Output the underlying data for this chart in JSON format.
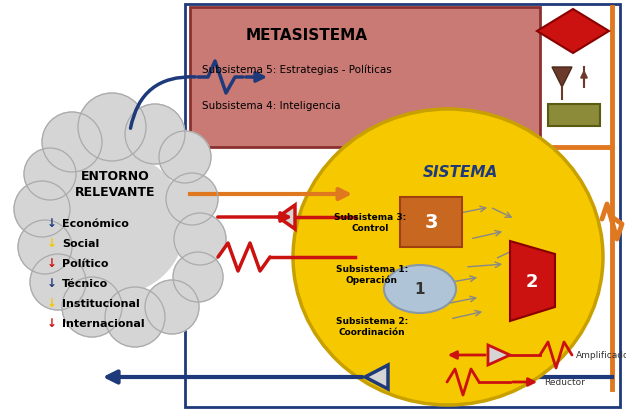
{
  "bg": "#ffffff",
  "blue": "#1f3a7a",
  "orange": "#e07820",
  "red": "#cc1111",
  "meta_fill": "#c97a75",
  "meta_edge": "#8b3030",
  "sistema_fill": "#f5c800",
  "sistema_edge": "#c8a000",
  "cloud_fill": "#d5d5d5",
  "cloud_edge": "#aaaaaa",
  "s3_fill": "#c86820",
  "s2_fill": "#cc1111",
  "s1_fill": "#b0c4d8",
  "olive_fill": "#8b8b3a",
  "brown_fill": "#6b3a2a",
  "meta_title": "METASISTEMA",
  "meta_sub5": "Subsistema 5: Estrategias - Políticas",
  "meta_sub4": "Subsistema 4: Inteligencia",
  "sistema_title": "SISTEMA",
  "entorno_title": "ENTORNO\nRELEVANTE",
  "items": [
    "Económico",
    "Social",
    "Político",
    "Técnico",
    "Institucional",
    "Internacional"
  ],
  "item_colors": [
    "#1f3a7a",
    "#f5c800",
    "#cc1111",
    "#1f3a7a",
    "#f5c800",
    "#cc1111"
  ],
  "sub3": "Subsistema 3:\nControl",
  "sub1": "Subsistema 1:\nOperación",
  "sub2": "Subsistema 2:\nCoordinación",
  "amplificador": "Amplificador",
  "reductor": "Reductor"
}
